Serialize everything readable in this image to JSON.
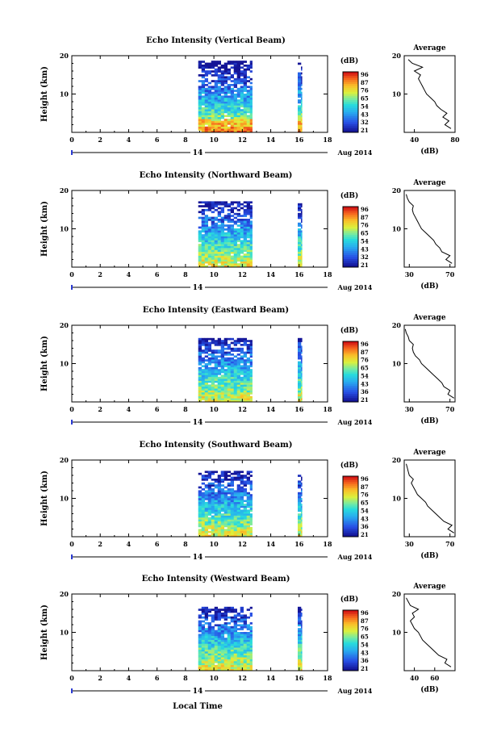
{
  "figure": {
    "x_axis_label": "Local Time",
    "date_label": "Aug 2014",
    "day_marker": "14",
    "colorbar_unit": "(dB)",
    "average_title": "Average",
    "average_unit": "(dB)"
  },
  "chart_data": [
    {
      "type": "heatmap",
      "title": "Echo Intensity (Vertical Beam)",
      "ylabel": "Height (km)",
      "xlim": [
        0,
        18
      ],
      "ylim": [
        0,
        20
      ],
      "x_ticks": [
        "0",
        "2",
        "4",
        "6",
        "8",
        "10",
        "12",
        "14",
        "16",
        "18"
      ],
      "y_ticks": [
        "10",
        "20"
      ],
      "colorbar_ticks": [
        "96",
        "87",
        "76",
        "65",
        "54",
        "43",
        "32",
        "21"
      ],
      "data_blocks": [
        {
          "x_start": 8.9,
          "x_end": 12.7,
          "top_km": 19
        },
        {
          "x_start": 15.9,
          "x_end": 16.2,
          "top_km": 18.5
        }
      ],
      "average": {
        "xlim": [
          30,
          80
        ],
        "x_ticks": [
          "40",
          "80"
        ],
        "profile": [
          [
            76,
            1
          ],
          [
            70,
            2
          ],
          [
            74,
            3
          ],
          [
            68,
            4
          ],
          [
            72,
            5
          ],
          [
            66,
            6
          ],
          [
            62,
            7
          ],
          [
            60,
            8
          ],
          [
            56,
            9
          ],
          [
            52,
            10
          ],
          [
            50,
            11
          ],
          [
            48,
            12
          ],
          [
            46,
            13
          ],
          [
            44,
            14
          ],
          [
            46,
            15
          ],
          [
            40,
            16
          ],
          [
            48,
            17
          ],
          [
            38,
            18
          ],
          [
            34,
            19
          ]
        ]
      }
    },
    {
      "type": "heatmap",
      "title": "Echo Intensity (Northward Beam)",
      "ylabel": "Height (km)",
      "xlim": [
        0,
        18
      ],
      "ylim": [
        0,
        20
      ],
      "x_ticks": [
        "0",
        "2",
        "4",
        "6",
        "8",
        "10",
        "12",
        "14",
        "16",
        "18"
      ],
      "y_ticks": [
        "10",
        "20"
      ],
      "colorbar_ticks": [
        "96",
        "87",
        "76",
        "65",
        "54",
        "43",
        "32",
        "21"
      ],
      "data_blocks": [
        {
          "x_start": 8.9,
          "x_end": 12.7,
          "top_km": 17.5
        },
        {
          "x_start": 15.9,
          "x_end": 16.2,
          "top_km": 17
        }
      ],
      "average": {
        "xlim": [
          25,
          75
        ],
        "x_ticks": [
          "30",
          "70"
        ],
        "profile": [
          [
            72,
            1
          ],
          [
            66,
            2
          ],
          [
            70,
            3
          ],
          [
            62,
            4
          ],
          [
            60,
            5
          ],
          [
            56,
            6
          ],
          [
            54,
            7
          ],
          [
            50,
            8
          ],
          [
            46,
            9
          ],
          [
            42,
            10
          ],
          [
            40,
            11
          ],
          [
            38,
            12
          ],
          [
            36,
            13
          ],
          [
            34,
            14
          ],
          [
            33,
            15
          ],
          [
            34,
            16
          ],
          [
            30,
            17
          ],
          [
            28,
            18
          ],
          [
            27,
            19
          ]
        ]
      }
    },
    {
      "type": "heatmap",
      "title": "Echo Intensity (Eastward Beam)",
      "ylabel": "Height (km)",
      "xlim": [
        0,
        18
      ],
      "ylim": [
        0,
        20
      ],
      "x_ticks": [
        "0",
        "2",
        "4",
        "6",
        "8",
        "10",
        "12",
        "14",
        "16",
        "18"
      ],
      "y_ticks": [
        "10",
        "20"
      ],
      "colorbar_ticks": [
        "96",
        "87",
        "76",
        "65",
        "54",
        "43",
        "36",
        "21"
      ],
      "data_blocks": [
        {
          "x_start": 8.9,
          "x_end": 12.7,
          "top_km": 17
        },
        {
          "x_start": 15.9,
          "x_end": 16.2,
          "top_km": 17
        }
      ],
      "average": {
        "xlim": [
          25,
          75
        ],
        "x_ticks": [
          "30",
          "70"
        ],
        "profile": [
          [
            74,
            1
          ],
          [
            68,
            2
          ],
          [
            70,
            3
          ],
          [
            64,
            4
          ],
          [
            62,
            5
          ],
          [
            58,
            6
          ],
          [
            54,
            7
          ],
          [
            50,
            8
          ],
          [
            46,
            9
          ],
          [
            42,
            10
          ],
          [
            40,
            11
          ],
          [
            36,
            12
          ],
          [
            34,
            13
          ],
          [
            33,
            14
          ],
          [
            34,
            15
          ],
          [
            30,
            16
          ],
          [
            29,
            17
          ],
          [
            27,
            18
          ],
          [
            26,
            19
          ]
        ]
      }
    },
    {
      "type": "heatmap",
      "title": "Echo Intensity (Southward Beam)",
      "ylabel": "Height (km)",
      "xlim": [
        0,
        18
      ],
      "ylim": [
        0,
        20
      ],
      "x_ticks": [
        "0",
        "2",
        "4",
        "6",
        "8",
        "10",
        "12",
        "14",
        "16",
        "18"
      ],
      "y_ticks": [
        "10",
        "20"
      ],
      "colorbar_ticks": [
        "96",
        "87",
        "76",
        "65",
        "54",
        "43",
        "36",
        "21"
      ],
      "data_blocks": [
        {
          "x_start": 8.9,
          "x_end": 12.7,
          "top_km": 17.5
        },
        {
          "x_start": 15.9,
          "x_end": 16.2,
          "top_km": 17
        }
      ],
      "average": {
        "xlim": [
          25,
          75
        ],
        "x_ticks": [
          "30",
          "70"
        ],
        "profile": [
          [
            74,
            1
          ],
          [
            68,
            2
          ],
          [
            72,
            3
          ],
          [
            64,
            4
          ],
          [
            60,
            5
          ],
          [
            56,
            6
          ],
          [
            52,
            7
          ],
          [
            48,
            8
          ],
          [
            46,
            9
          ],
          [
            42,
            10
          ],
          [
            38,
            11
          ],
          [
            36,
            12
          ],
          [
            34,
            13
          ],
          [
            32,
            14
          ],
          [
            34,
            15
          ],
          [
            30,
            16
          ],
          [
            29,
            17
          ],
          [
            28,
            18
          ],
          [
            27,
            19
          ]
        ]
      }
    },
    {
      "type": "heatmap",
      "title": "Echo Intensity (Westward Beam)",
      "ylabel": "Height (km)",
      "xlim": [
        0,
        18
      ],
      "ylim": [
        0,
        20
      ],
      "x_ticks": [
        "0",
        "2",
        "4",
        "6",
        "8",
        "10",
        "12",
        "14",
        "16",
        "18"
      ],
      "y_ticks": [
        "10",
        "20"
      ],
      "colorbar_ticks": [
        "96",
        "87",
        "76",
        "65",
        "54",
        "43",
        "36",
        "21"
      ],
      "data_blocks": [
        {
          "x_start": 8.9,
          "x_end": 12.7,
          "top_km": 17
        },
        {
          "x_start": 15.9,
          "x_end": 16.2,
          "top_km": 17
        }
      ],
      "average": {
        "xlim": [
          30,
          80
        ],
        "x_ticks": [
          "40",
          "60"
        ],
        "profile": [
          [
            76,
            1
          ],
          [
            70,
            2
          ],
          [
            72,
            3
          ],
          [
            64,
            4
          ],
          [
            60,
            5
          ],
          [
            56,
            6
          ],
          [
            52,
            7
          ],
          [
            48,
            8
          ],
          [
            46,
            9
          ],
          [
            44,
            10
          ],
          [
            40,
            11
          ],
          [
            38,
            12
          ],
          [
            36,
            13
          ],
          [
            40,
            14
          ],
          [
            38,
            15
          ],
          [
            44,
            16
          ],
          [
            36,
            17
          ],
          [
            34,
            18
          ],
          [
            32,
            19
          ]
        ]
      }
    }
  ]
}
